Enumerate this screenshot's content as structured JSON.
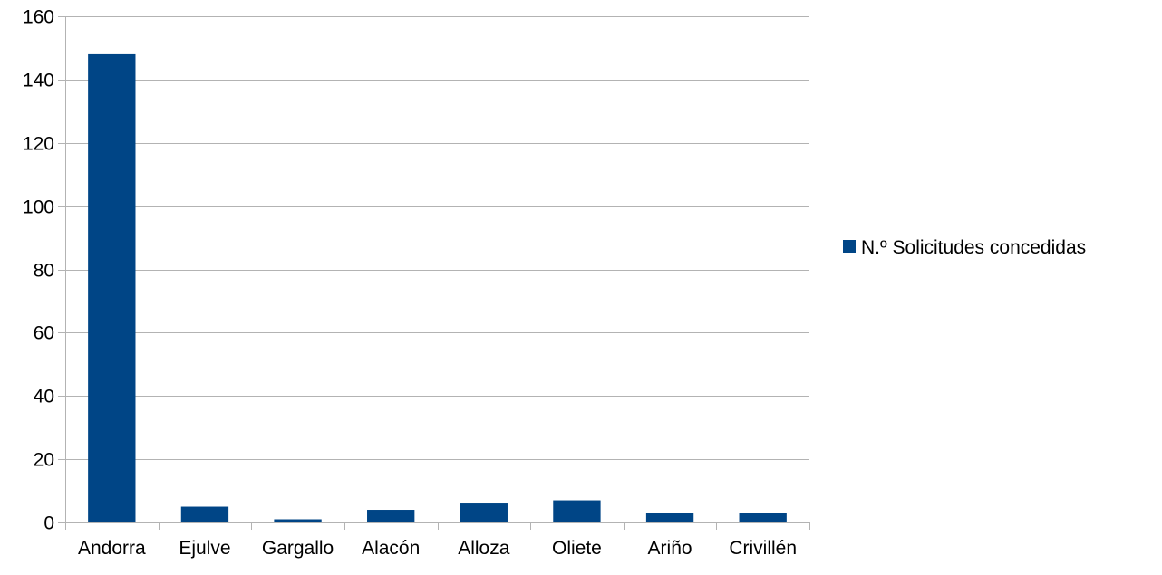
{
  "chart_data": {
    "type": "bar",
    "categories": [
      "Andorra",
      "Ejulve",
      "Gargallo",
      "Alacón",
      "Alloza",
      "Oliete",
      "Ariño",
      "Crivillén"
    ],
    "series": [
      {
        "name": "N.º Solicitudes concedidas",
        "values": [
          148,
          5,
          1,
          4,
          6,
          7,
          3,
          3
        ],
        "color": "#004586"
      }
    ],
    "title": "",
    "xlabel": "",
    "ylabel": "",
    "ylim": [
      0,
      160
    ],
    "yticks": [
      0,
      20,
      40,
      60,
      80,
      100,
      120,
      140,
      160
    ],
    "grid": true,
    "legend_position": "right",
    "colors": {
      "bar": "#004586",
      "grid": "#b3b3b3",
      "axis": "#b3b3b3"
    }
  }
}
